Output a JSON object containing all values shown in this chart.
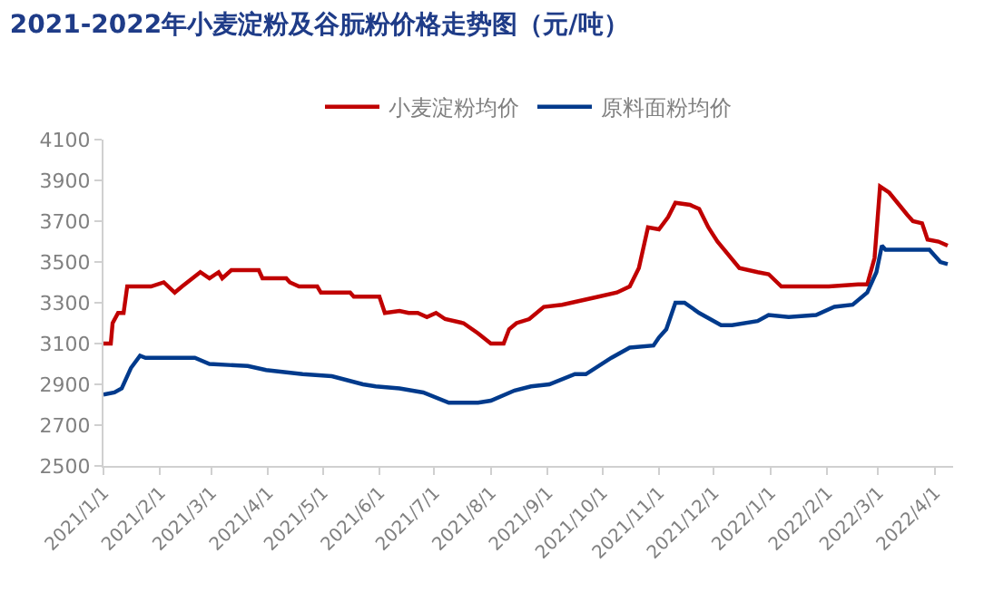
{
  "chart_data": {
    "type": "line",
    "title": "2021-2022年小麦淀粉及谷朊粉价格走势图（元/吨）",
    "legend": "top",
    "grid": false,
    "marker": "none",
    "line_style": "solid",
    "xlim": [
      "2021-01-01",
      "2022-04-11"
    ],
    "xticks": [
      {
        "value": "2021-01-01",
        "label": "2021/1/1"
      },
      {
        "value": "2021-02-01",
        "label": "2021/2/1"
      },
      {
        "value": "2021-03-01",
        "label": "2021/3/1"
      },
      {
        "value": "2021-04-01",
        "label": "2021/4/1"
      },
      {
        "value": "2021-05-01",
        "label": "2021/5/1"
      },
      {
        "value": "2021-06-01",
        "label": "2021/6/1"
      },
      {
        "value": "2021-07-01",
        "label": "2021/7/1"
      },
      {
        "value": "2021-08-01",
        "label": "2021/8/1"
      },
      {
        "value": "2021-09-01",
        "label": "2021/9/1"
      },
      {
        "value": "2021-10-01",
        "label": "2021/10/1"
      },
      {
        "value": "2021-11-01",
        "label": "2021/11/1"
      },
      {
        "value": "2021-12-01",
        "label": "2021/12/1"
      },
      {
        "value": "2022-01-01",
        "label": "2022/1/1"
      },
      {
        "value": "2022-02-01",
        "label": "2022/2/1"
      },
      {
        "value": "2022-03-01",
        "label": "2022/3/1"
      },
      {
        "value": "2022-04-01",
        "label": "2022/4/1"
      }
    ],
    "ylim": [
      2500,
      4100
    ],
    "yticks": [
      2500,
      2700,
      2900,
      3100,
      3300,
      3500,
      3700,
      3900,
      4100
    ],
    "series": [
      {
        "name": "小麦淀粉均价",
        "color": "#c00000",
        "x": [
          "2021-01-01",
          "2021-01-05",
          "2021-01-06",
          "2021-01-09",
          "2021-01-12",
          "2021-01-14",
          "2021-01-27",
          "2021-02-03",
          "2021-02-09",
          "2021-02-13",
          "2021-02-23",
          "2021-02-28",
          "2021-03-05",
          "2021-03-07",
          "2021-03-12",
          "2021-03-27",
          "2021-03-29",
          "2021-04-11",
          "2021-04-13",
          "2021-04-18",
          "2021-04-28",
          "2021-04-30",
          "2021-05-16",
          "2021-05-18",
          "2021-06-01",
          "2021-06-04",
          "2021-06-12",
          "2021-06-17",
          "2021-06-22",
          "2021-06-27",
          "2021-07-02",
          "2021-07-07",
          "2021-07-17",
          "2021-07-25",
          "2021-08-01",
          "2021-08-08",
          "2021-08-11",
          "2021-08-15",
          "2021-08-22",
          "2021-08-30",
          "2021-09-09",
          "2021-09-19",
          "2021-09-29",
          "2021-10-09",
          "2021-10-16",
          "2021-10-21",
          "2021-10-26",
          "2021-11-01",
          "2021-11-06",
          "2021-11-10",
          "2021-11-18",
          "2021-11-23",
          "2021-11-28",
          "2021-12-03",
          "2021-12-15",
          "2021-12-25",
          "2021-12-31",
          "2022-01-07",
          "2022-02-02",
          "2022-02-18",
          "2022-02-23",
          "2022-02-27",
          "2022-03-02",
          "2022-03-07",
          "2022-03-17",
          "2022-03-20",
          "2022-03-25",
          "2022-03-28",
          "2022-04-03",
          "2022-04-08"
        ],
        "values": [
          3100,
          3100,
          3200,
          3250,
          3250,
          3380,
          3380,
          3400,
          3350,
          3380,
          3450,
          3420,
          3450,
          3420,
          3460,
          3460,
          3420,
          3420,
          3400,
          3380,
          3380,
          3350,
          3350,
          3330,
          3330,
          3250,
          3260,
          3250,
          3250,
          3230,
          3250,
          3220,
          3200,
          3150,
          3100,
          3100,
          3170,
          3200,
          3220,
          3280,
          3290,
          3310,
          3330,
          3350,
          3380,
          3470,
          3670,
          3660,
          3720,
          3790,
          3780,
          3760,
          3670,
          3600,
          3470,
          3450,
          3440,
          3380,
          3380,
          3390,
          3390,
          3520,
          3870,
          3840,
          3730,
          3700,
          3690,
          3610,
          3600,
          3580
        ]
      },
      {
        "name": "原料面粉均价",
        "color": "#003a8c",
        "x": [
          "2021-01-01",
          "2021-01-07",
          "2021-01-11",
          "2021-01-16",
          "2021-01-21",
          "2021-01-24",
          "2021-02-20",
          "2021-02-28",
          "2021-03-21",
          "2021-03-31",
          "2021-04-20",
          "2021-05-06",
          "2021-05-23",
          "2021-05-30",
          "2021-06-12",
          "2021-06-25",
          "2021-07-09",
          "2021-07-25",
          "2021-08-01",
          "2021-08-14",
          "2021-08-23",
          "2021-09-02",
          "2021-09-16",
          "2021-09-22",
          "2021-10-06",
          "2021-10-16",
          "2021-10-29",
          "2021-11-01",
          "2021-11-05",
          "2021-11-10",
          "2021-11-15",
          "2021-11-23",
          "2021-12-05",
          "2021-12-11",
          "2021-12-25",
          "2021-12-31",
          "2022-01-11",
          "2022-01-26",
          "2022-02-05",
          "2022-02-15",
          "2022-02-23",
          "2022-02-28",
          "2022-03-03",
          "2022-03-05",
          "2022-03-29",
          "2022-04-04",
          "2022-04-08"
        ],
        "values": [
          2850,
          2860,
          2880,
          2980,
          3040,
          3030,
          3030,
          3000,
          2990,
          2970,
          2950,
          2940,
          2900,
          2890,
          2880,
          2860,
          2810,
          2810,
          2820,
          2870,
          2890,
          2900,
          2950,
          2950,
          3030,
          3080,
          3090,
          3130,
          3170,
          3300,
          3300,
          3250,
          3190,
          3190,
          3210,
          3240,
          3230,
          3240,
          3280,
          3290,
          3350,
          3450,
          3580,
          3560,
          3560,
          3500,
          3490
        ]
      }
    ]
  }
}
